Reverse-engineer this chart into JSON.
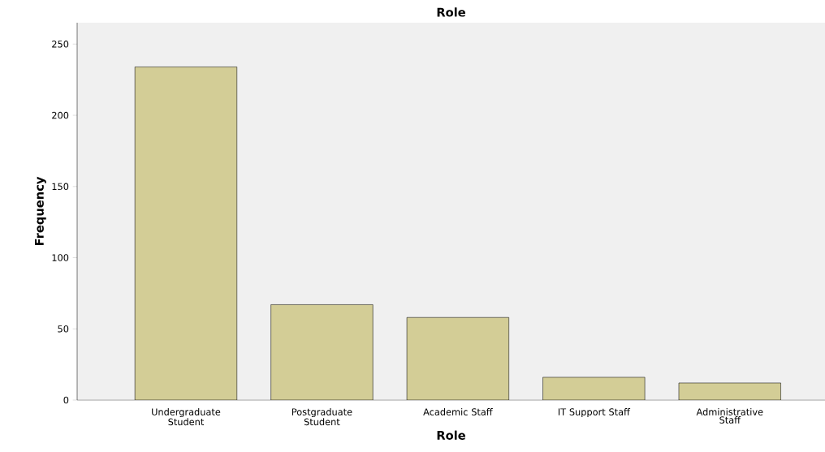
{
  "chart_data": {
    "type": "bar",
    "title": "Role",
    "xlabel": "Role",
    "ylabel": "Frequency",
    "categories": [
      "Undergraduate Student",
      "Postgraduate Student",
      "Academic Staff",
      "IT Support Staff",
      "Administrative Staff"
    ],
    "values": [
      234,
      67,
      58,
      16,
      12
    ],
    "color": "#d3cd96",
    "ylim": [
      0,
      265
    ],
    "yticks": [
      0,
      50,
      100,
      150,
      200,
      250
    ],
    "grid": false
  }
}
